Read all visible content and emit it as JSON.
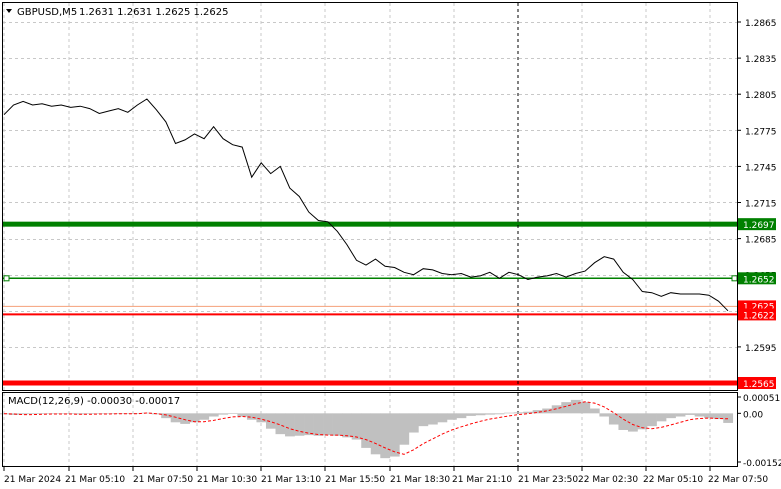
{
  "header": {
    "symbol": "GBPUSD,M5",
    "ohlc": "1.2631 1.2631 1.2625 1.2625"
  },
  "colors": {
    "background": "#ffffff",
    "grid": "#c8c8c8",
    "price_line": "#000000",
    "green_level": "#008000",
    "red_level": "#ff0000",
    "macd_hist": "#c0c0c0",
    "macd_signal": "#ff0000"
  },
  "levels": [
    {
      "value": "1.2697",
      "price": 1.2697,
      "color": "#008000",
      "style": "thick"
    },
    {
      "value": "1.2652",
      "price": 1.2652,
      "color": "#008000",
      "style": "thin"
    },
    {
      "value": "1.2622",
      "price": 1.2622,
      "color": "#ff0000",
      "style": "double"
    },
    {
      "value": "1.2565",
      "price": 1.2565,
      "color": "#ff0000",
      "style": "thick"
    }
  ],
  "current_price_label": "1.2625",
  "chart_data": [
    {
      "type": "line",
      "title": "GBPUSD,M5",
      "yticks": [
        "1.2865",
        "1.2835",
        "1.2805",
        "1.2775",
        "1.2745",
        "1.2715",
        "1.2685",
        "1.2655",
        "1.2625",
        "1.2595"
      ],
      "ylim": [
        1.2565,
        1.2877
      ],
      "xticks": [
        "21 Mar 2024",
        "21 Mar 05:10",
        "21 Mar 07:50",
        "21 Mar 10:30",
        "21 Mar 13:10",
        "21 Mar 15:50",
        "21 Mar 18:30",
        "21 Mar 21:10",
        "21 Mar 23:50",
        "22 Mar 02:30",
        "22 Mar 05:10",
        "22 Mar 07:50"
      ],
      "series": [
        {
          "values": [
            1.2788,
            1.2796,
            1.2799,
            1.2796,
            1.2797,
            1.2795,
            1.2796,
            1.2794,
            1.2795,
            1.2793,
            1.2789,
            1.2791,
            1.2793,
            1.279,
            1.2796,
            1.2801,
            1.2792,
            1.2782,
            1.2764,
            1.2767,
            1.2772,
            1.2768,
            1.2778,
            1.2768,
            1.2763,
            1.2761,
            1.2736,
            1.2748,
            1.2739,
            1.2745,
            1.2727,
            1.272,
            1.2707,
            1.27,
            1.2699,
            1.2691,
            1.268,
            1.2667,
            1.2663,
            1.2668,
            1.2662,
            1.2661,
            1.2657,
            1.2655,
            1.266,
            1.2659,
            1.2656,
            1.2655,
            1.2656,
            1.2653,
            1.2654,
            1.2657,
            1.2652,
            1.2657,
            1.2655,
            1.2651,
            1.2653,
            1.2654,
            1.2656,
            1.2653,
            1.2656,
            1.2658,
            1.2665,
            1.267,
            1.2668,
            1.2657,
            1.2651,
            1.2641,
            1.264,
            1.2637,
            1.264,
            1.2639,
            1.2639,
            1.2639,
            1.2638,
            1.2633,
            1.2625
          ]
        }
      ]
    },
    {
      "type": "bar",
      "title": "MACD(12,26,9) -0.00030 -0.00017",
      "yticks": [
        "0.00051",
        "0.00",
        "-0.00152"
      ],
      "ylim": [
        -0.00152,
        0.00051
      ],
      "series": [
        {
          "name": "histogram",
          "values": [
            -3e-05,
            -5e-05,
            -3e-05,
            -2e-05,
            -2e-05,
            -1e-05,
            -1e-05,
            -2e-05,
            -3e-05,
            -2e-05,
            -1e-05,
            -1e-05,
            -1e-05,
            -1e-05,
            1e-05,
            2e-05,
            -3e-05,
            -0.00015,
            -0.00028,
            -0.00033,
            -0.00028,
            -0.0002,
            -0.0001,
            -4e-05,
            -2e-05,
            -0.0001,
            -0.0002,
            -0.00028,
            -0.00048,
            -0.00065,
            -0.00072,
            -0.0007,
            -0.00068,
            -0.0007,
            -0.00068,
            -0.0007,
            -0.00075,
            -0.00082,
            -0.00108,
            -0.00128,
            -0.0014,
            -0.00135,
            -0.00098,
            -0.0006,
            -0.0004,
            -0.00035,
            -0.00028,
            -0.0002,
            -0.00015,
            -8e-05,
            -6e-05,
            -4e-05,
            -3e-05,
            2e-05,
            3e-05,
            5e-05,
            0.0001,
            0.00015,
            0.00025,
            0.00035,
            0.00042,
            0.00035,
            0.00015,
            -0.0001,
            -0.00035,
            -0.00052,
            -0.00057,
            -0.0005,
            -0.0004,
            -0.00025,
            -0.00015,
            -0.0001,
            -5e-05,
            -0.0001,
            -0.00015,
            -0.00018,
            -0.0003
          ]
        },
        {
          "name": "signal",
          "values": [
            -1e-05,
            -2e-05,
            -4e-05,
            -4e-05,
            -3e-05,
            -2e-05,
            -2e-05,
            -2e-05,
            -3e-05,
            -3e-05,
            -2e-05,
            -2e-05,
            -1e-05,
            -1e-05,
            -1e-05,
            1e-05,
            -1e-05,
            -5e-05,
            -0.00012,
            -0.0002,
            -0.00026,
            -0.00026,
            -0.00022,
            -0.00016,
            -0.00011,
            -0.0001,
            -0.00012,
            -0.00018,
            -0.00026,
            -0.00036,
            -0.00048,
            -0.00056,
            -0.00062,
            -0.00066,
            -0.00068,
            -0.00068,
            -0.0007,
            -0.00074,
            -0.00082,
            -0.00094,
            -0.00108,
            -0.0012,
            -0.00128,
            -0.00114,
            -0.00095,
            -0.0008,
            -0.00065,
            -0.00052,
            -0.00042,
            -0.00033,
            -0.00025,
            -0.00018,
            -0.00013,
            -8e-05,
            -4e-05,
            -1e-05,
            3e-05,
            8e-05,
            0.00014,
            0.00022,
            0.0003,
            0.00036,
            0.00032,
            0.0002,
            2e-05,
            -0.00018,
            -0.00035,
            -0.00045,
            -0.00048,
            -0.00044,
            -0.00036,
            -0.00028,
            -0.0002,
            -0.00016,
            -0.00015,
            -0.00016,
            -0.00017
          ]
        }
      ]
    }
  ]
}
